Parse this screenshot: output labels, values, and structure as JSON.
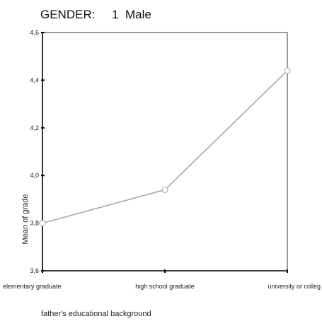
{
  "chart_data": {
    "type": "line",
    "title": "GENDER:     1  Male",
    "xlabel": "father's educational background",
    "ylabel": "Mean of grade",
    "categories": [
      "elementary graduate",
      "high school graduate",
      "university or colleg"
    ],
    "series": [
      {
        "values": [
          3.8,
          3.94,
          4.44
        ]
      }
    ],
    "ylim": [
      3.6,
      4.6
    ],
    "yticks": [
      "3,6",
      "3,8",
      "4,0",
      "4,2",
      "4,4",
      "4,6"
    ],
    "ytick_values": [
      3.6,
      3.8,
      4.0,
      4.2,
      4.4,
      4.6
    ],
    "grid": false,
    "colors": {
      "line": "#a8a8a8",
      "axis": "#000000",
      "frame": "#333333"
    }
  }
}
